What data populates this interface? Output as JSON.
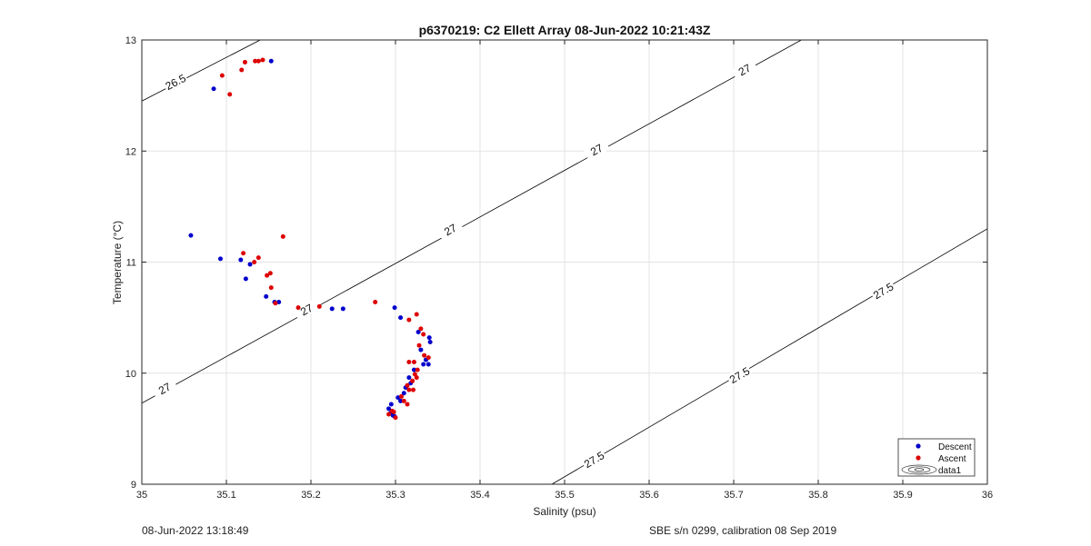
{
  "chart_data": {
    "type": "scatter",
    "title": "p6370219: C2 Ellett Array 08-Jun-2022 10:21:43Z",
    "xlabel": "Salinity (psu)",
    "ylabel": "Temperature (°C)",
    "xlim": [
      35,
      36
    ],
    "ylim": [
      9,
      13
    ],
    "xticks": [
      "35",
      "35.1",
      "35.2",
      "35.3",
      "35.4",
      "35.5",
      "35.6",
      "35.7",
      "35.8",
      "35.9",
      "36"
    ],
    "yticks": [
      "9",
      "10",
      "11",
      "12",
      "13"
    ],
    "grid": true,
    "legend_position": "bottom-right",
    "legend": [
      "Descent",
      "Ascent",
      "data1"
    ],
    "colors": {
      "descent": "#0000cc",
      "ascent": "#dd0000",
      "contour": "#000000",
      "grid": "#e3e3e3"
    },
    "series": [
      {
        "name": "Descent",
        "points": [
          [
            35.153,
            12.81
          ],
          [
            35.085,
            12.56
          ],
          [
            35.058,
            11.24
          ],
          [
            35.093,
            11.03
          ],
          [
            35.117,
            11.02
          ],
          [
            35.128,
            10.98
          ],
          [
            35.123,
            10.85
          ],
          [
            35.147,
            10.69
          ],
          [
            35.157,
            10.64
          ],
          [
            35.162,
            10.64
          ],
          [
            35.225,
            10.58
          ],
          [
            35.238,
            10.58
          ],
          [
            35.299,
            10.59
          ],
          [
            35.306,
            10.5
          ],
          [
            35.327,
            10.37
          ],
          [
            35.34,
            10.32
          ],
          [
            35.341,
            10.28
          ],
          [
            35.33,
            10.21
          ],
          [
            35.336,
            10.12
          ],
          [
            35.339,
            10.08
          ],
          [
            35.333,
            10.08
          ],
          [
            35.322,
            10.03
          ],
          [
            35.316,
            9.96
          ],
          [
            35.318,
            9.91
          ],
          [
            35.312,
            9.87
          ],
          [
            35.31,
            9.82
          ],
          [
            35.303,
            9.78
          ],
          [
            35.306,
            9.75
          ],
          [
            35.295,
            9.72
          ],
          [
            35.292,
            9.68
          ],
          [
            35.294,
            9.64
          ],
          [
            35.297,
            9.62
          ],
          [
            35.299,
            9.61
          ]
        ]
      },
      {
        "name": "Ascent",
        "points": [
          [
            35.143,
            12.82
          ],
          [
            35.138,
            12.81
          ],
          [
            35.134,
            12.81
          ],
          [
            35.122,
            12.8
          ],
          [
            35.118,
            12.73
          ],
          [
            35.095,
            12.68
          ],
          [
            35.104,
            12.51
          ],
          [
            35.167,
            11.23
          ],
          [
            35.12,
            11.08
          ],
          [
            35.138,
            11.04
          ],
          [
            35.133,
            11.0
          ],
          [
            35.152,
            10.9
          ],
          [
            35.148,
            10.88
          ],
          [
            35.153,
            10.77
          ],
          [
            35.158,
            10.63
          ],
          [
            35.185,
            10.59
          ],
          [
            35.21,
            10.6
          ],
          [
            35.276,
            10.64
          ],
          [
            35.325,
            10.53
          ],
          [
            35.316,
            10.48
          ],
          [
            35.33,
            10.4
          ],
          [
            35.333,
            10.35
          ],
          [
            35.328,
            10.25
          ],
          [
            35.334,
            10.16
          ],
          [
            35.339,
            10.14
          ],
          [
            35.316,
            10.1
          ],
          [
            35.322,
            10.1
          ],
          [
            35.326,
            10.03
          ],
          [
            35.323,
            9.99
          ],
          [
            35.325,
            9.96
          ],
          [
            35.32,
            9.93
          ],
          [
            35.314,
            9.89
          ],
          [
            35.316,
            9.85
          ],
          [
            35.321,
            9.85
          ],
          [
            35.307,
            9.79
          ],
          [
            35.31,
            9.75
          ],
          [
            35.314,
            9.72
          ],
          [
            35.296,
            9.66
          ],
          [
            35.298,
            9.65
          ],
          [
            35.292,
            9.63
          ],
          [
            35.3,
            9.6
          ]
        ]
      }
    ],
    "contours": [
      {
        "label": "26.5",
        "points": [
          [
            35.0,
            12.45
          ],
          [
            35.14,
            13.0
          ]
        ],
        "label_at": [
          [
            35.04,
            12.62
          ]
        ]
      },
      {
        "label": "27",
        "points": [
          [
            35.0,
            9.73
          ],
          [
            35.78,
            13.0
          ]
        ],
        "label_at": [
          [
            35.027,
            9.86
          ],
          [
            35.195,
            10.57
          ],
          [
            35.365,
            11.29
          ],
          [
            35.538,
            12.01
          ],
          [
            35.713,
            12.73
          ]
        ]
      },
      {
        "label": "27.5",
        "points": [
          [
            35.485,
            9.0
          ],
          [
            36.0,
            11.3
          ]
        ],
        "label_at": [
          [
            35.535,
            9.22
          ],
          [
            35.707,
            9.98
          ],
          [
            35.877,
            10.74
          ]
        ]
      }
    ]
  },
  "footer": {
    "left": "08-Jun-2022 13:18:49",
    "right": "SBE s/n 0299, calibration 08 Sep 2019"
  }
}
